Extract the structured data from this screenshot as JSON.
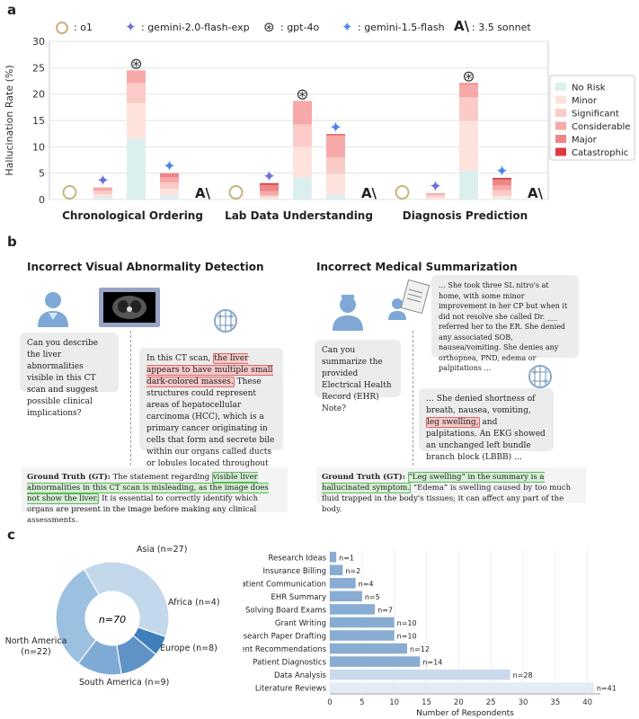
{
  "panel_labels": {
    "a": "a",
    "b": "b",
    "c": "c"
  },
  "colors": {
    "no_risk": "#dcefef",
    "minor": "#fde3dc",
    "significant": "#fbcbc7",
    "considerable": "#f6a9a8",
    "major": "#ee8587",
    "catastrophic": "#dd3a3f",
    "donut_light": "#c4d8ec",
    "donut_mid": "#9cc0e0",
    "donut_dark": "#3f7fbc",
    "bar_blue": "#89acd2"
  },
  "chart_data": [
    {
      "type": "bar",
      "stacked": true,
      "title": "",
      "ylabel": "Hallucination Rate (%)",
      "xlabel": "",
      "ylim": [
        0,
        30
      ],
      "yticks": [
        "0",
        "5",
        "10",
        "15",
        "20",
        "25",
        "30"
      ],
      "grid": true,
      "models": [
        {
          "name": "o1",
          "label": ": o1",
          "icon": "o1-icon"
        },
        {
          "name": "gemini-2.0-flash-exp",
          "label": ": gemini-2.0-flash-exp",
          "icon": "gemini-sparkle-icon"
        },
        {
          "name": "gpt-4o",
          "label": ": gpt-4o",
          "icon": "openai-icon"
        },
        {
          "name": "gemini-1.5-flash",
          "label": ": gemini-1.5-flash",
          "icon": "gemini-star-icon"
        },
        {
          "name": "3.5 sonnet",
          "label": ": 3.5 sonnet",
          "icon": "anthropic-icon"
        }
      ],
      "risk_levels": [
        "No Risk",
        "Minor",
        "Significant",
        "Considerable",
        "Major",
        "Catastrophic"
      ],
      "categories": [
        "Chronological Ordering",
        "Lab Data Understanding",
        "Diagnosis Prediction"
      ],
      "stacks": [
        [
          [
            0,
            0,
            0,
            0,
            0,
            0
          ],
          [
            0.5,
            0.5,
            0.7,
            0.6,
            0,
            0
          ],
          [
            11.5,
            6.8,
            3.8,
            2.4,
            0,
            0
          ],
          [
            0.8,
            1.2,
            1.2,
            1.0,
            0.8,
            0
          ],
          [
            0,
            0,
            0,
            0,
            0,
            0
          ]
        ],
        [
          [
            0,
            0,
            0,
            0,
            0,
            0
          ],
          [
            0.2,
            0.3,
            0.3,
            0.8,
            1.2,
            0.3
          ],
          [
            4.2,
            5.8,
            4.2,
            4.5,
            0,
            0
          ],
          [
            0.9,
            4.0,
            3.1,
            4.2,
            0,
            0.2
          ],
          [
            0,
            0,
            0,
            0,
            0,
            0
          ]
        ],
        [
          [
            0,
            0,
            0,
            0,
            0,
            0
          ],
          [
            0.1,
            0.4,
            0.4,
            0.3,
            0,
            0
          ],
          [
            5.5,
            9.4,
            4.5,
            2.4,
            0.3,
            0
          ],
          [
            0.3,
            0.4,
            1.1,
            0.9,
            1.1,
            0.3
          ],
          [
            0,
            0,
            0,
            0,
            0,
            0
          ]
        ]
      ]
    },
    {
      "type": "pie",
      "center_label": "n=70",
      "labels": [
        "Asia (n=27)",
        "Africa (n=4)",
        "Europe (n=8)",
        "South America (n=9)",
        "North America (n=22)"
      ],
      "values": [
        27,
        4,
        8,
        9,
        22
      ]
    },
    {
      "type": "bar",
      "orientation": "horizontal",
      "xlabel": "Number of Respondents",
      "xlim": [
        0,
        42
      ],
      "xticks": [
        "0",
        "5",
        "10",
        "15",
        "20",
        "25",
        "30",
        "35",
        "40"
      ],
      "categories": [
        "Research Ideas",
        "Insurance Billing",
        "Patient Communication",
        "EHR Summary",
        "Solving Board Exams",
        "Grant Writing",
        "Research Paper Drafting",
        "Treatment Recommendations",
        "Patient Diagnostics",
        "Data Analysis",
        "Literature Reviews"
      ],
      "values": [
        1,
        2,
        4,
        5,
        7,
        10,
        10,
        12,
        14,
        28,
        41
      ],
      "value_labels": [
        "n=1",
        "n=2",
        "n=4",
        "n=5",
        "n=7",
        "n=10",
        "n=10",
        "n=12",
        "n=14",
        "n=28",
        "n=41"
      ]
    }
  ],
  "panel_b": {
    "left_title": "Incorrect Visual Abnormality Detection",
    "right_title": "Incorrect Medical Summarization",
    "left_question": "Can you describe the liver abnormalities visible in this CT scan and suggest possible clinical implications?",
    "left_answer_pre": "In this CT scan,",
    "left_answer_hl": "the liver appears to have multiple small dark-colored masses.",
    "left_answer_post": "These structures could represent areas of hepatocellular carcinoma (HCC), which is a primary cancer originating in cells that form and secrete bile within our organs called ducts or lobules located throughout both halves if the organ …",
    "left_gt_label": "Ground Truth (GT):",
    "left_gt_pre": "The statement regarding",
    "left_gt_hl": "visible liver abnormalities in this CT scan is misleading, as the image does not show the liver.",
    "left_gt_post": "It is essential to correctly identify which organs are present in the image before making any clinical assessments.",
    "right_note": "… She took three SL nitro's at home, with some minor improvement in her CP but when it did not resolve she called Dr. ___ referred her to the ER. She denied any associated SOB, nausea/vomiting. She denies any orthopnea, PND, edema or palpitations …",
    "right_question": "Can you summarize the provided Electrical Health Record (EHR) Note?",
    "right_answer_pre": "… She denied shortness of breath, nausea, vomiting,",
    "right_answer_hl": "leg swelling,",
    "right_answer_post": "and palpitations. An EKG showed an unchanged left bundle branch block (LBBB) …",
    "right_gt_label": "Ground Truth (GT):",
    "right_gt_hl": "“Leg swelling” in the summary is a hallucinated symptom.",
    "right_gt_post": "“Edema” is swelling caused by too much fluid trapped in the body's tissues; it can affect any part of the body."
  }
}
